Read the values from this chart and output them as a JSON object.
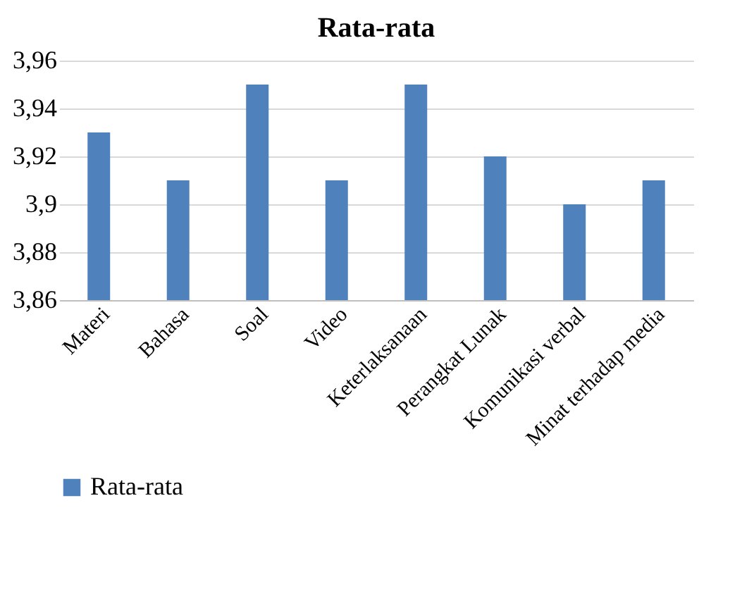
{
  "chart_data": {
    "type": "bar",
    "title": "Rata-rata",
    "categories": [
      "Materi",
      "Bahasa",
      "Soal",
      "Video",
      "Keterlaksanaan",
      "Perangkat Lunak",
      "Komunikasi verbal",
      "Minat terhadap media"
    ],
    "series": [
      {
        "name": "Rata-rata",
        "color": "#4f81bd",
        "values": [
          3.93,
          3.91,
          3.95,
          3.91,
          3.95,
          3.92,
          3.9,
          3.91
        ]
      }
    ],
    "ylim": [
      3.86,
      3.96
    ],
    "yticks": [
      {
        "value": 3.86,
        "label": "3,86"
      },
      {
        "value": 3.88,
        "label": "3,88"
      },
      {
        "value": 3.9,
        "label": "3,9"
      },
      {
        "value": 3.92,
        "label": "3,92"
      },
      {
        "value": 3.94,
        "label": "3,94"
      },
      {
        "value": 3.96,
        "label": "3,96"
      }
    ],
    "grid": "y",
    "legend": "bottom"
  }
}
